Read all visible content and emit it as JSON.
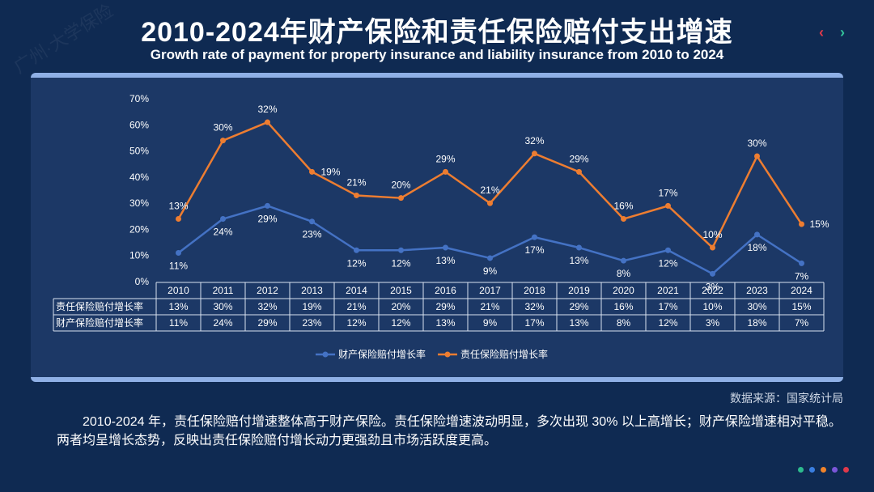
{
  "header": {
    "title_cn": "2010-2024年财产保险和责任保险赔付支出增速",
    "title_en": "Growth rate of payment for property insurance and liability insurance from 2010 to 2024",
    "watermark": "广州·大学保险",
    "prev_icon": "‹",
    "next_icon": "›"
  },
  "source": "数据来源：国家统计局",
  "paragraph": "2010-2024 年，责任保险赔付增速整体高于财产保险。责任保险增速波动明显，多次出现 30% 以上高增长；财产保险增速相对平稳。两者均呈增长态势，反映出责任保险赔付增长动力更强劲且市场活跃度更高。",
  "dots": [
    "#2dbb8e",
    "#3a7ee0",
    "#f0832a",
    "#7b56d8",
    "#e0394b"
  ],
  "chart_data": {
    "type": "line",
    "categories": [
      "2010",
      "2011",
      "2012",
      "2013",
      "2014",
      "2015",
      "2016",
      "2017",
      "2018",
      "2019",
      "2020",
      "2021",
      "2022",
      "2023",
      "2024"
    ],
    "y_ticks": [
      "0%",
      "10%",
      "20%",
      "30%",
      "40%",
      "50%",
      "60%",
      "70%"
    ],
    "series": [
      {
        "name": "财产保险赔付增长率",
        "color": "#4472c4",
        "values": [
          11,
          24,
          29,
          23,
          12,
          12,
          13,
          9,
          17,
          13,
          8,
          12,
          3,
          18,
          7
        ],
        "labels": [
          "11%",
          "24%",
          "29%",
          "23%",
          "12%",
          "12%",
          "13%",
          "9%",
          "17%",
          "13%",
          "8%",
          "12%",
          "3%",
          "18%",
          "7%"
        ]
      },
      {
        "name": "责任保险赔付增长率",
        "color": "#ed7d31",
        "plotted": [
          24,
          54,
          61,
          42,
          33,
          32,
          42,
          30,
          49,
          42,
          24,
          29,
          13,
          48,
          22
        ],
        "labels": [
          "13%",
          "30%",
          "32%",
          "19%",
          "21%",
          "20%",
          "29%",
          "21%",
          "32%",
          "29%",
          "16%",
          "17%",
          "10%",
          "30%",
          "15%"
        ]
      }
    ],
    "table": {
      "rows": [
        {
          "name": "责任保险赔付增长率",
          "values": [
            "13%",
            "30%",
            "32%",
            "19%",
            "21%",
            "20%",
            "29%",
            "21%",
            "32%",
            "29%",
            "16%",
            "17%",
            "10%",
            "30%",
            "15%"
          ]
        },
        {
          "name": "财产保险赔付增长率",
          "values": [
            "11%",
            "24%",
            "29%",
            "23%",
            "12%",
            "12%",
            "13%",
            "9%",
            "17%",
            "13%",
            "8%",
            "12%",
            "3%",
            "18%",
            "7%"
          ]
        }
      ]
    },
    "legend": [
      "财产保险赔付增长率",
      "责任保险赔付增长率"
    ],
    "ylim": [
      0,
      70
    ],
    "grid": false,
    "legend_position": "bottom"
  }
}
